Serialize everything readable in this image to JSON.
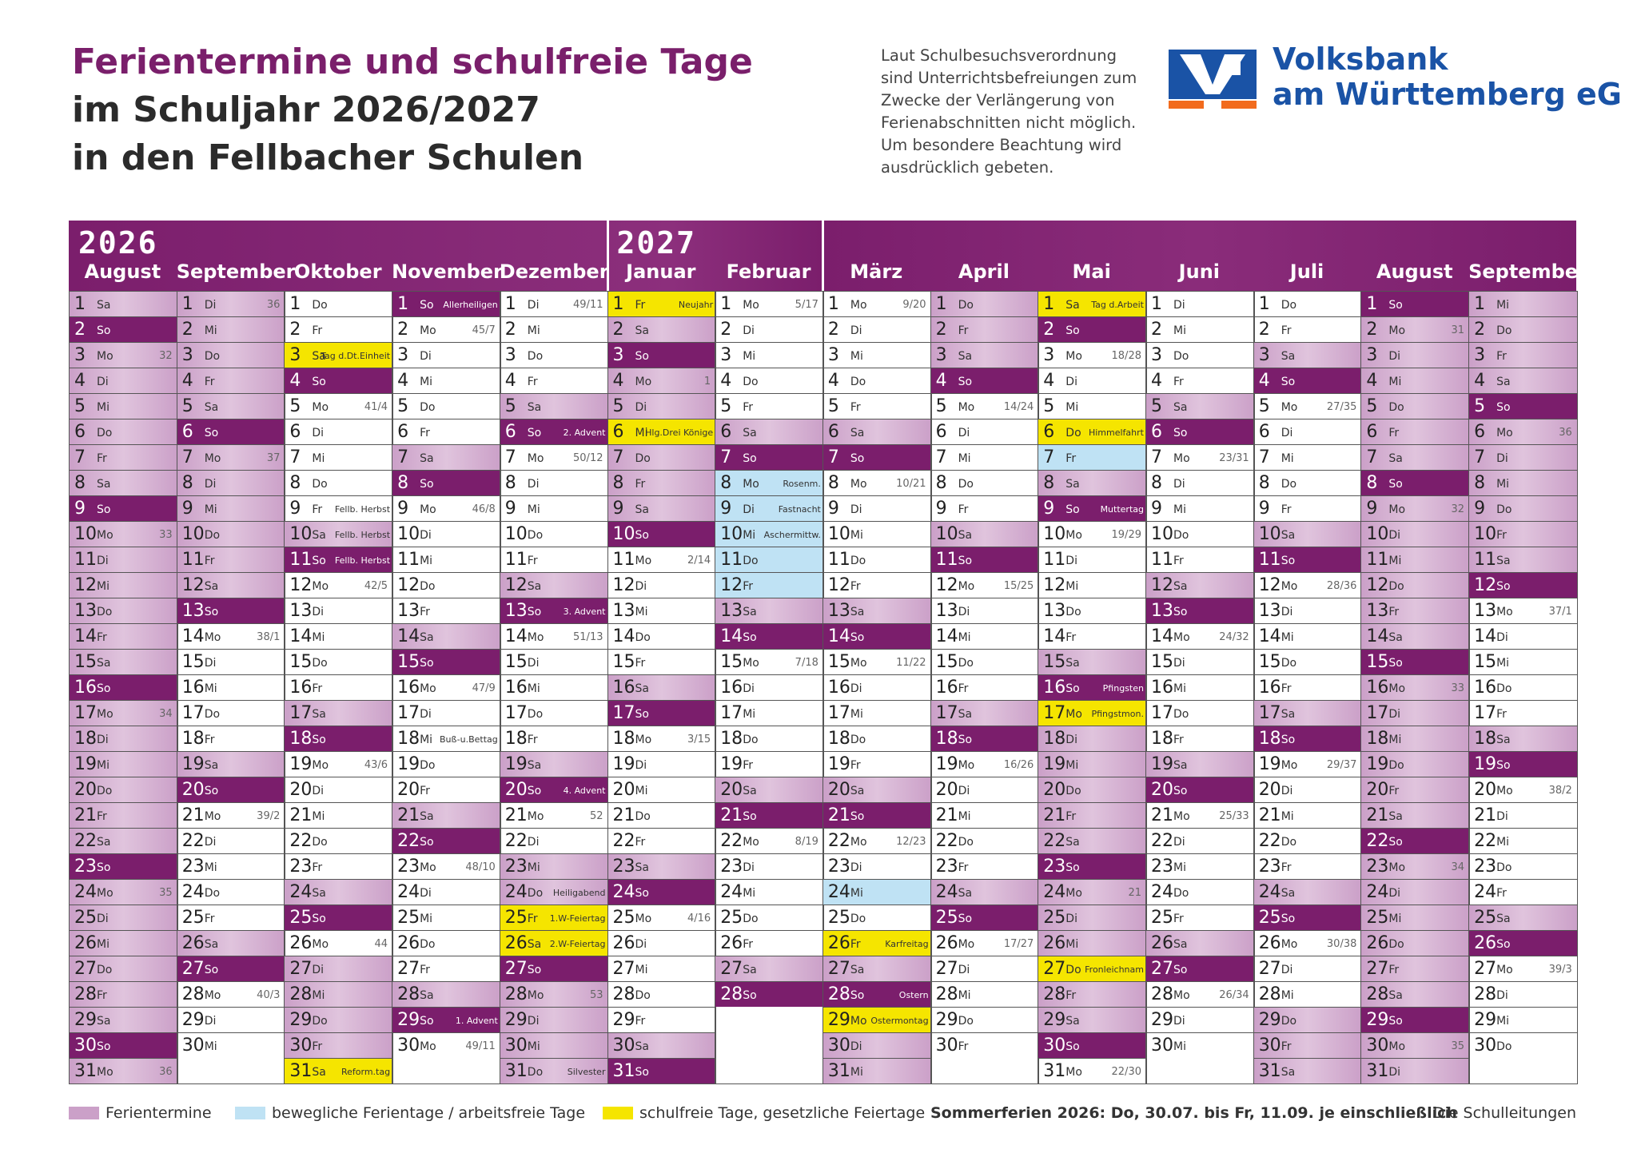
{
  "header": {
    "title_line1": "Ferientermine und schulfreie Tage",
    "title_line2": "im Schuljahr 2026/2027",
    "title_line3": "in den Fellbacher Schulen",
    "notice": "Laut Schulbesuchsverordnung sind Unterrichtsbefreiungen zum Zwecke der Verlängerung von Ferienabschnitten nicht möglich. Um besondere Beachtung wird ausdrücklich gebeten.",
    "bank_line1": "Volksbank",
    "bank_line2": "am Württemberg eG"
  },
  "colors": {
    "vacation": "#7b1e6c",
    "weekend": "#cba0c8",
    "movable": "#bfe2f4",
    "holiday": "#f5e500"
  },
  "years": [
    "2026",
    "2027"
  ],
  "months": [
    {
      "name": "August",
      "start": 6,
      "days": 31,
      "vac": [
        1,
        2,
        3,
        4,
        5,
        6,
        7,
        8,
        9,
        10,
        11,
        12,
        13,
        14,
        15,
        16,
        17,
        18,
        19,
        20,
        21,
        22,
        23,
        24,
        25,
        26,
        27,
        28,
        29,
        30,
        31
      ],
      "wk": {
        "3": "32",
        "10": "33",
        "17": "34",
        "24": "35",
        "31": "36"
      }
    },
    {
      "name": "September",
      "start": 2,
      "days": 30,
      "vac": [
        1,
        2,
        3,
        4,
        5,
        6,
        7,
        8,
        9,
        10,
        11
      ],
      "wk": {
        "1": "36",
        "7": "37",
        "14": "38/1",
        "21": "39/2",
        "28": "40/3"
      }
    },
    {
      "name": "Oktober",
      "start": 4,
      "days": 31,
      "vac": [
        27,
        28,
        29,
        30
      ],
      "hol": {
        "3": "Tag d.Dt.Einheit",
        "31": "Reform.tag"
      },
      "lbl": {
        "9": "Fellb. Herbst",
        "10": "Fellb. Herbst",
        "11": "Fellb. Herbst"
      },
      "wk": {
        "5": "41/4",
        "12": "42/5",
        "19": "43/6",
        "26": "44"
      }
    },
    {
      "name": "November",
      "start": 0,
      "days": 30,
      "lbl": {
        "1": "Allerheiligen",
        "18": "Buß-u.Bettag",
        "29": "1. Advent"
      },
      "wk": {
        "2": "45/7",
        "9": "46/8",
        "16": "47/9",
        "23": "48/10",
        "30": "49/11"
      }
    },
    {
      "name": "Dezember",
      "start": 2,
      "days": 31,
      "vac": [
        23,
        24,
        27,
        28,
        29,
        30,
        31
      ],
      "hol": {
        "25": "1.W-Feiertag",
        "26": "2.W-Feiertag"
      },
      "lbl": {
        "6": "2. Advent",
        "13": "3. Advent",
        "20": "4. Advent",
        "24": "Heiligabend",
        "31": "Silvester"
      },
      "wk": {
        "1": "49/11",
        "7": "50/12",
        "14": "51/13",
        "21": "52",
        "28": "53"
      }
    },
    {
      "name": "Januar",
      "start": 5,
      "days": 31,
      "vac": [
        1,
        2,
        3,
        4,
        5,
        6,
        7,
        8,
        9
      ],
      "hol": {
        "1": "Neujahr",
        "6": "Hlg.Drei Könige"
      },
      "wk": {
        "4": "1",
        "11": "2/14",
        "18": "3/15",
        "25": "4/16"
      }
    },
    {
      "name": "Februar",
      "start": 1,
      "days": 28,
      "mov": [
        8,
        9,
        10,
        11,
        12
      ],
      "lbl": {
        "8": "Rosenm.",
        "9": "Fastnacht",
        "10": "Aschermittw."
      },
      "wk": {
        "1": "5/17",
        "8": "6",
        "15": "7/18",
        "22": "8/19"
      }
    },
    {
      "name": "März",
      "start": 1,
      "days": 31,
      "vac": [
        29,
        30,
        31
      ],
      "mov": [
        24
      ],
      "hol": {
        "26": "Karfreitag",
        "29": "Ostermontag"
      },
      "lbl": {
        "28": "Ostern"
      },
      "wk": {
        "1": "9/20",
        "8": "10/21",
        "15": "11/22",
        "22": "12/23",
        "29": "13"
      }
    },
    {
      "name": "April",
      "start": 4,
      "days": 30,
      "vac": [
        1,
        2
      ],
      "wk": {
        "5": "14/24",
        "12": "15/25",
        "19": "16/26",
        "26": "17/27"
      }
    },
    {
      "name": "Mai",
      "start": 6,
      "days": 31,
      "vac": [
        18,
        19,
        20,
        21,
        22,
        23,
        24,
        25,
        26,
        28,
        29,
        30
      ],
      "mov": [
        7
      ],
      "hol": {
        "1": "Tag d.Arbeit",
        "6": "Himmelfahrt",
        "17": "Pfingstmon.",
        "27": "Fronleichnam"
      },
      "lbl": {
        "9": "Muttertag",
        "16": "Pfingsten"
      },
      "wk": {
        "3": "18/28",
        "10": "19/29",
        "17": "20",
        "24": "21",
        "31": "22/30"
      }
    },
    {
      "name": "Juni",
      "start": 2,
      "days": 30,
      "wk": {
        "7": "23/31",
        "14": "24/32",
        "21": "25/33",
        "28": "26/34"
      }
    },
    {
      "name": "Juli",
      "start": 4,
      "days": 31,
      "vac": [
        29,
        30,
        31
      ],
      "wk": {
        "5": "27/35",
        "12": "28/36",
        "19": "29/37",
        "26": "30/38"
      }
    },
    {
      "name": "August",
      "start": 0,
      "days": 31,
      "vac": [
        1,
        2,
        3,
        4,
        5,
        6,
        7,
        8,
        9,
        10,
        11,
        12,
        13,
        14,
        15,
        16,
        17,
        18,
        19,
        20,
        21,
        22,
        23,
        24,
        25,
        26,
        27,
        28,
        29,
        30,
        31
      ],
      "wk": {
        "2": "31",
        "9": "32",
        "16": "33",
        "23": "34",
        "30": "35"
      }
    },
    {
      "name": "September",
      "start": 3,
      "days": 30,
      "vac": [
        1,
        2,
        3,
        4,
        5,
        6,
        7,
        8,
        9,
        10,
        11
      ],
      "wk": {
        "6": "36",
        "13": "37/1",
        "20": "38/2",
        "27": "39/3"
      }
    }
  ],
  "weekdays": [
    "So",
    "Mo",
    "Di",
    "Mi",
    "Do",
    "Fr",
    "Sa"
  ],
  "legend": {
    "vacation": "Ferientermine",
    "movable": "bewegliche Ferientage / arbeitsfreie Tage",
    "holiday": "schulfreie Tage, gesetzliche Feiertage",
    "summer": "Sommerferien 2026: Do, 30.07. bis Fr, 11.09. je einschließlich",
    "sign": "Die Schulleitungen"
  }
}
